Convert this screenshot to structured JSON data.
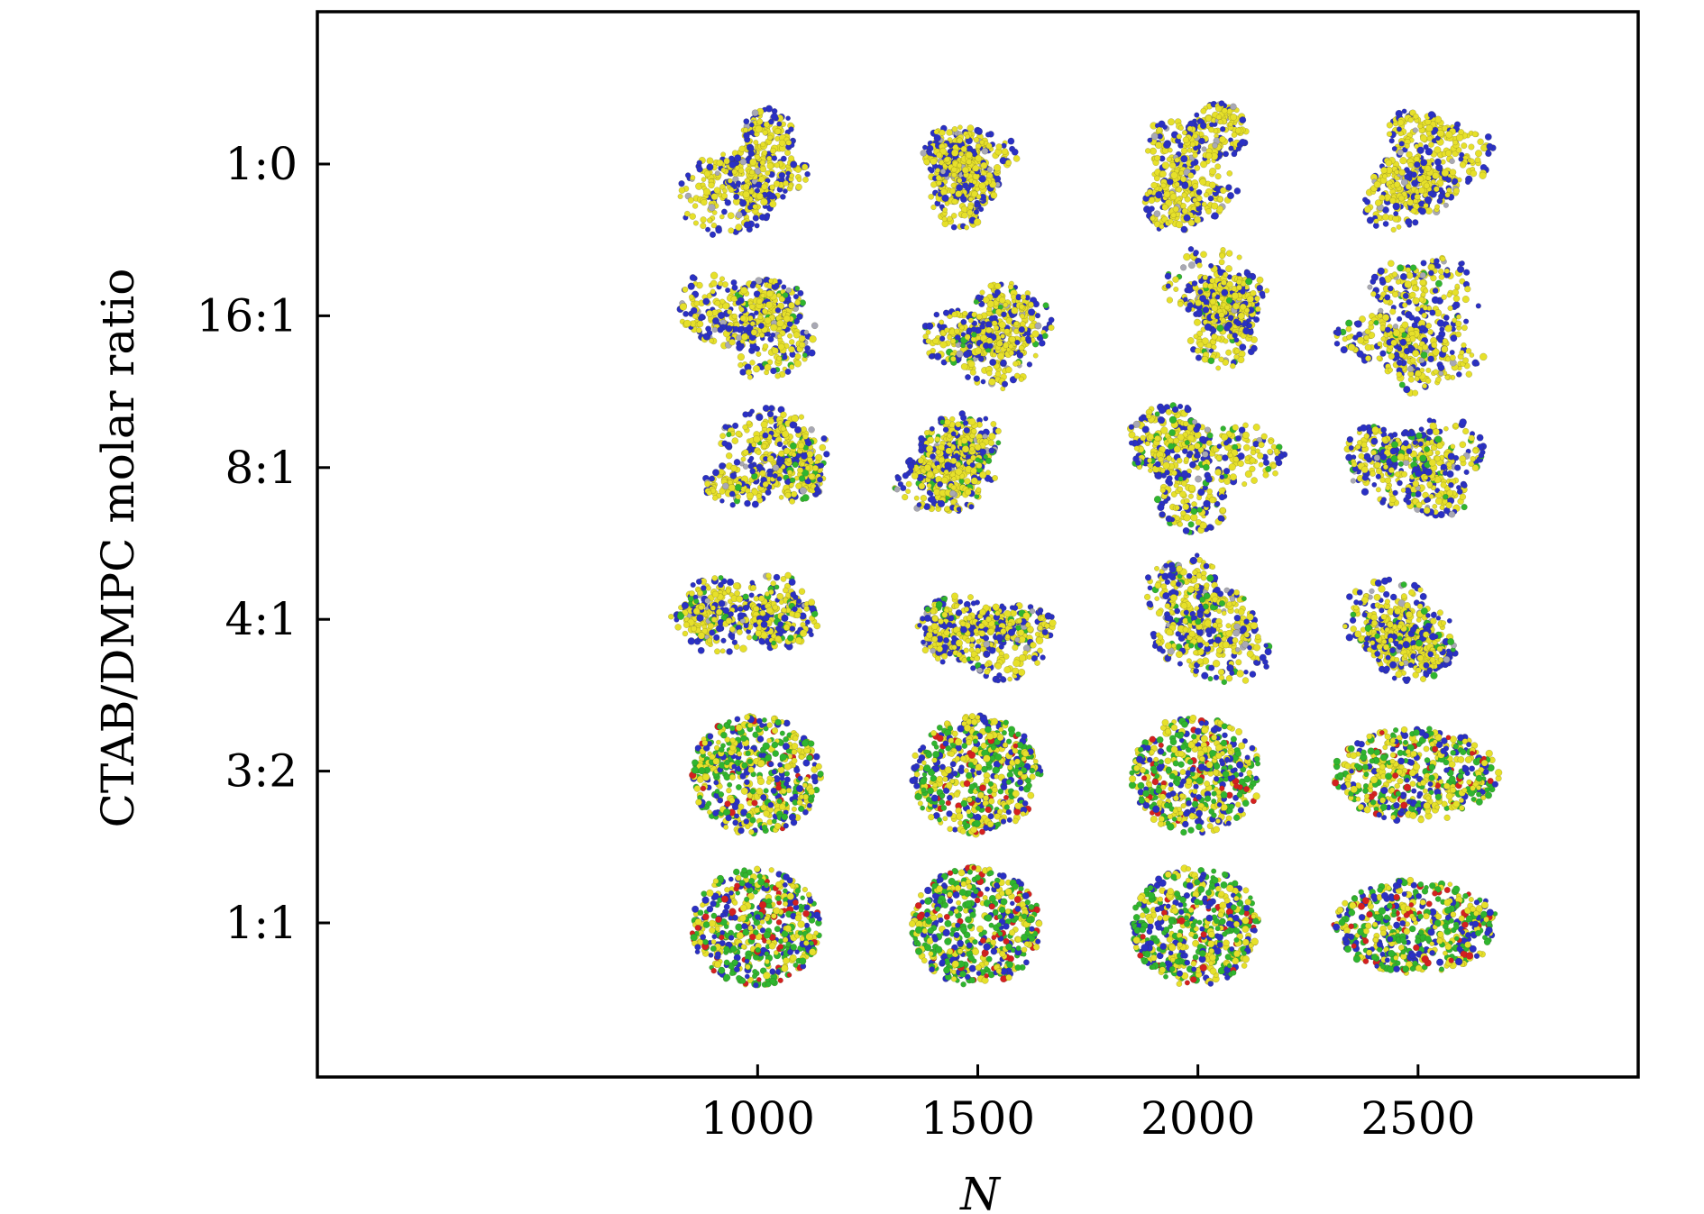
{
  "chart_data": {
    "type": "scatter",
    "title": "",
    "xlabel": "N",
    "ylabel": "CTAB/DMPC molar ratio",
    "xlim": [
      0,
      3000
    ],
    "x_ticks": [
      1000,
      1500,
      2000,
      2500
    ],
    "categories": [
      "1:0",
      "16:1",
      "8:1",
      "4:1",
      "3:2",
      "1:1"
    ],
    "grid": false,
    "legend": "none",
    "marker_colors": {
      "tail": "#e6e02a",
      "head": "#2a30c4",
      "green": "#2fb52f",
      "red": "#d42020",
      "gray": "#a8a8b4"
    },
    "points": [
      {
        "N": 1000,
        "ratio": "1:0",
        "morphology": "branched"
      },
      {
        "N": 1500,
        "ratio": "1:0",
        "morphology": "branched"
      },
      {
        "N": 2000,
        "ratio": "1:0",
        "morphology": "branched"
      },
      {
        "N": 2500,
        "ratio": "1:0",
        "morphology": "branched"
      },
      {
        "N": 1000,
        "ratio": "16:1",
        "morphology": "branched"
      },
      {
        "N": 1500,
        "ratio": "16:1",
        "morphology": "branched"
      },
      {
        "N": 2000,
        "ratio": "16:1",
        "morphology": "branched"
      },
      {
        "N": 2500,
        "ratio": "16:1",
        "morphology": "branched"
      },
      {
        "N": 1000,
        "ratio": "8:1",
        "morphology": "branched"
      },
      {
        "N": 1500,
        "ratio": "8:1",
        "morphology": "branched"
      },
      {
        "N": 2000,
        "ratio": "8:1",
        "morphology": "branched"
      },
      {
        "N": 2500,
        "ratio": "8:1",
        "morphology": "branched"
      },
      {
        "N": 1000,
        "ratio": "4:1",
        "morphology": "branched"
      },
      {
        "N": 1500,
        "ratio": "4:1",
        "morphology": "branched"
      },
      {
        "N": 2000,
        "ratio": "4:1",
        "morphology": "branched"
      },
      {
        "N": 2500,
        "ratio": "4:1",
        "morphology": "branched"
      },
      {
        "N": 1000,
        "ratio": "3:2",
        "morphology": "compact"
      },
      {
        "N": 1500,
        "ratio": "3:2",
        "morphology": "compact"
      },
      {
        "N": 2000,
        "ratio": "3:2",
        "morphology": "compact"
      },
      {
        "N": 2500,
        "ratio": "3:2",
        "morphology": "compact"
      },
      {
        "N": 1000,
        "ratio": "1:1",
        "morphology": "compact"
      },
      {
        "N": 1500,
        "ratio": "1:1",
        "morphology": "compact"
      },
      {
        "N": 2000,
        "ratio": "1:1",
        "morphology": "compact"
      },
      {
        "N": 2500,
        "ratio": "1:1",
        "morphology": "compact"
      }
    ]
  }
}
